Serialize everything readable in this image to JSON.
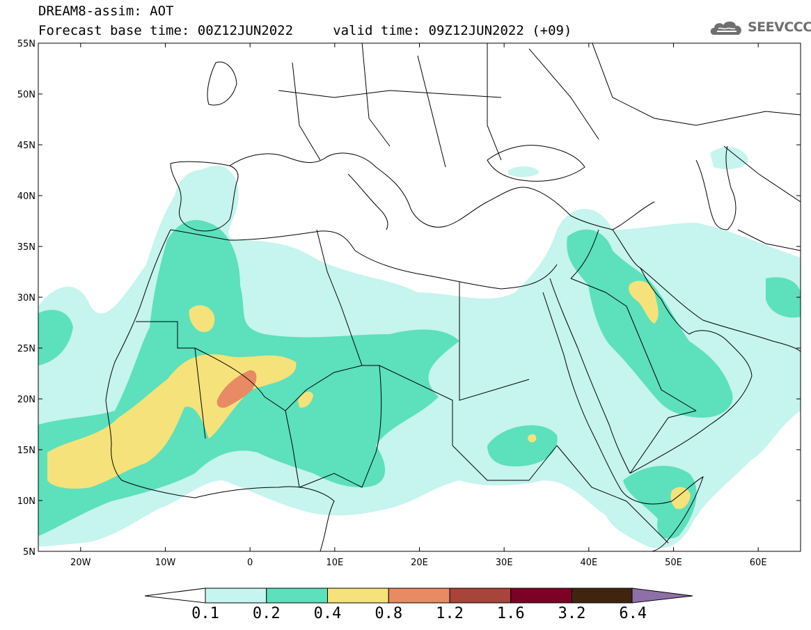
{
  "header": {
    "title_line1": "DREAM8-assim: AOT",
    "title_line2": "Forecast base time: 00Z12JUN2022     valid time: 09Z12JUN2022 (+09)"
  },
  "logo": {
    "text": "SEEVCCC",
    "color": "#6f6f6f",
    "icon": "cloud-icon"
  },
  "map": {
    "lon_range": [
      -25,
      65
    ],
    "lat_range": [
      5,
      55
    ],
    "lon_ticks": [
      {
        "value": -20,
        "label": "20W"
      },
      {
        "value": -10,
        "label": "10W"
      },
      {
        "value": 0,
        "label": "0"
      },
      {
        "value": 10,
        "label": "10E"
      },
      {
        "value": 20,
        "label": "20E"
      },
      {
        "value": 30,
        "label": "30E"
      },
      {
        "value": 40,
        "label": "40E"
      },
      {
        "value": 50,
        "label": "50E"
      },
      {
        "value": 60,
        "label": "60E"
      }
    ],
    "lat_ticks": [
      {
        "value": 55,
        "label": "55N"
      },
      {
        "value": 50,
        "label": "50N"
      },
      {
        "value": 45,
        "label": "45N"
      },
      {
        "value": 40,
        "label": "40N"
      },
      {
        "value": 35,
        "label": "35N"
      },
      {
        "value": 30,
        "label": "30N"
      },
      {
        "value": 25,
        "label": "25N"
      },
      {
        "value": 20,
        "label": "20N"
      },
      {
        "value": 15,
        "label": "15N"
      },
      {
        "value": 10,
        "label": "10N"
      },
      {
        "value": 5,
        "label": "5N"
      }
    ]
  },
  "colorbar": {
    "colors": [
      "#c6f4ee",
      "#5de0bc",
      "#f6e27a",
      "#e88a63",
      "#a8443a",
      "#7d0025",
      "#3f2510",
      "#8f6fa8"
    ],
    "levels": [
      "0.1",
      "0.2",
      "0.4",
      "0.8",
      "1.2",
      "1.6",
      "3.2",
      "6.4"
    ]
  }
}
